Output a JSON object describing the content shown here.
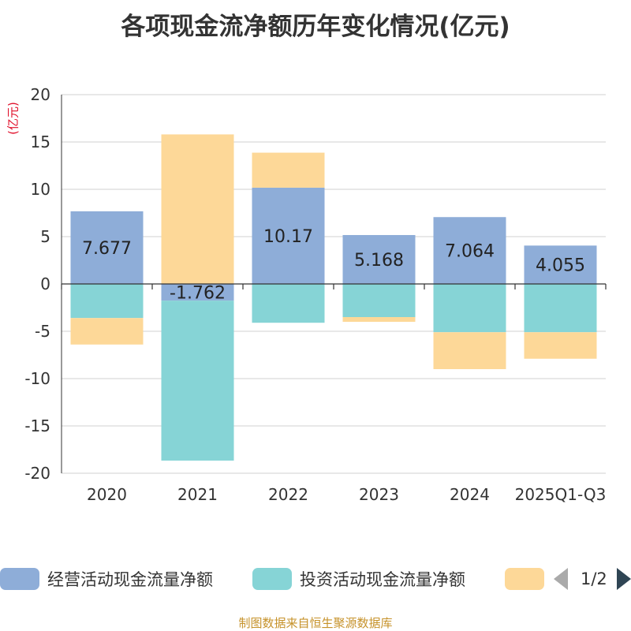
{
  "chart_data": {
    "type": "bar",
    "stacked": true,
    "title": "各项现金流净额历年变化情况(亿元)",
    "ylabel": "(亿元)",
    "ylim": [
      -20,
      20
    ],
    "yticks": [
      20,
      15,
      10,
      5,
      0,
      -5,
      -10,
      -15,
      -20
    ],
    "categories": [
      "2020",
      "2021",
      "2022",
      "2023",
      "2024",
      "2025Q1-Q3"
    ],
    "series": [
      {
        "name": "经营活动现金流量净额",
        "color": "#8eadd8",
        "values": [
          7.677,
          -1.762,
          10.17,
          5.168,
          7.064,
          4.055
        ],
        "labels": [
          "7.677",
          "-1.762",
          "10.17",
          "5.168",
          "7.064",
          "4.055"
        ]
      },
      {
        "name": "投资活动现金流量净额",
        "color": "#86d4d6",
        "values": [
          -3.6,
          -16.9,
          -4.1,
          -3.5,
          -5.1,
          -5.1
        ]
      },
      {
        "name": "",
        "color": "#fdd898",
        "values": [
          -2.8,
          15.8,
          3.7,
          -0.5,
          -3.9,
          -2.8
        ]
      }
    ],
    "legend_position": "bottom",
    "legend_page": "1/2",
    "source": "制图数据来自恒生聚源数据库"
  }
}
